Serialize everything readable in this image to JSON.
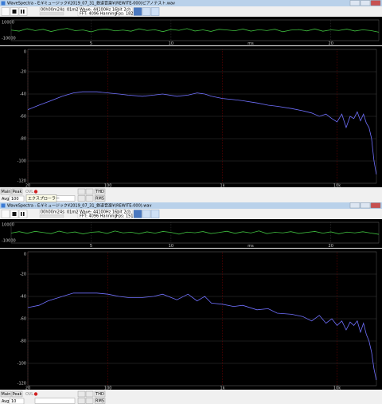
{
  "windows": [
    {
      "title": "WaveSpectra - E:¥ミュージック¥2019_07_31_鉄道音楽¥(REWITE-000)ピアノテスト.wav",
      "time": "00h00m24s",
      "elapsed": "01m24s",
      "info": [
        "Wave: 44100Hz 16bit 2ch",
        "FFT: 4096 Hanning"
      ],
      "fps": "Fps: 182",
      "buttons": [
        "Main",
        "Peak",
        "THD",
        "RMS"
      ],
      "ovl": "OVL",
      "avg_label": "Avg:",
      "avg": "100",
      "tooltip": "エクスプローラー"
    },
    {
      "title": "WaveSpectra - E:¥ミュージック¥2019_07_31_鉄道音楽¥(REWITE-000).wav",
      "time": "00h00m24s",
      "elapsed": "01m24s",
      "info": [
        "Wave: 44100Hz 16bit 2ch",
        "FFT: 4096 Hanning"
      ],
      "fps": "Fps: 151",
      "buttons": [
        "Main",
        "Peak",
        "THD",
        "RMS"
      ],
      "ovl": "OVL",
      "avg_label": "Avg:",
      "avg": "10"
    }
  ],
  "chart_data": [
    {
      "type": "line",
      "x_label": "ms",
      "color": "#3fbf3f",
      "grid_color": "#333333",
      "x": [
        0,
        0.5,
        1,
        1.5,
        2,
        2.5,
        3,
        3.5,
        4,
        4.5,
        5,
        5.5,
        6,
        6.5,
        7,
        7.5,
        8,
        8.5,
        9,
        9.5,
        10,
        10.5,
        11,
        11.5,
        12,
        12.5,
        13,
        13.5,
        14,
        14.5,
        15,
        15.5,
        16,
        16.5,
        17,
        17.5,
        18,
        18.5,
        19,
        19.5,
        20,
        20.5,
        21,
        21.5,
        22,
        22.5,
        23
      ],
      "values": [
        200,
        -800,
        1500,
        -300,
        900,
        -1200,
        600,
        1800,
        -400,
        300,
        -1500,
        700,
        1100,
        -600,
        200,
        -900,
        1400,
        -200,
        500,
        -1300,
        800,
        -100,
        1600,
        -700,
        400,
        -1100,
        900,
        300,
        -500,
        1200,
        -800,
        600,
        -300,
        1000,
        -1400,
        200,
        700,
        -600,
        1300,
        -900,
        400,
        -200,
        1100,
        -700,
        500,
        -300,
        -1800
      ],
      "xlim": [
        0,
        23
      ],
      "xticks": [
        5,
        10,
        20
      ],
      "ylim": [
        -10000,
        10000
      ],
      "yticks": [
        10000,
        -10000
      ]
    },
    {
      "type": "line",
      "log_x": true,
      "color": "#7070ff",
      "grid_color": "#6a0000",
      "x": [
        20,
        25,
        30,
        40,
        50,
        60,
        70,
        80,
        100,
        125,
        150,
        200,
        250,
        300,
        400,
        500,
        600,
        700,
        800,
        1000,
        1250,
        1500,
        2000,
        2500,
        3000,
        4000,
        5000,
        6000,
        7000,
        8000,
        9000,
        10000,
        11000,
        12000,
        13000,
        14000,
        15000,
        16000,
        17000,
        18000,
        19000,
        20000,
        21000,
        22000
      ],
      "values": [
        -54,
        -50,
        -47,
        -42,
        -39,
        -38,
        -38,
        -38,
        -39,
        -40,
        -41,
        -42,
        -41,
        -40,
        -42,
        -41,
        -39,
        -40,
        -42,
        -44,
        -45,
        -46,
        -48,
        -50,
        -51,
        -53,
        -55,
        -57,
        -60,
        -58,
        -62,
        -65,
        -58,
        -70,
        -60,
        -62,
        -56,
        -64,
        -58,
        -66,
        -70,
        -80,
        -100,
        -112
      ],
      "xlim": [
        20,
        22050
      ],
      "xticks": [
        20,
        100,
        {
          "value": 1000,
          "label": "1k"
        },
        {
          "value": 10000,
          "label": "10k"
        }
      ],
      "ylim": [
        -120,
        0
      ],
      "yticks": [
        0,
        -20,
        -40,
        -60,
        -80,
        -100,
        -120
      ]
    },
    {
      "type": "line",
      "x_label": "ms",
      "color": "#3fbf3f",
      "grid_color": "#333333",
      "x": [
        0,
        0.5,
        1,
        1.5,
        2,
        2.5,
        3,
        3.5,
        4,
        4.5,
        5,
        5.5,
        6,
        6.5,
        7,
        7.5,
        8,
        8.5,
        9,
        9.5,
        10,
        10.5,
        11,
        11.5,
        12,
        12.5,
        13,
        13.5,
        14,
        14.5,
        15,
        15.5,
        16,
        16.5,
        17,
        17.5,
        18,
        18.5,
        19,
        19.5,
        20,
        20.5,
        21,
        21.5,
        22,
        22.5,
        23
      ],
      "values": [
        -400,
        1000,
        -600,
        1300,
        200,
        -900,
        1500,
        -300,
        700,
        -1200,
        400,
        900,
        -700,
        1600,
        -200,
        500,
        -1000,
        800,
        -500,
        1200,
        300,
        -1400,
        600,
        -100,
        1100,
        -800,
        200,
        1400,
        -600,
        900,
        -300,
        1700,
        -900,
        400,
        -200,
        1000,
        -700,
        300,
        1200,
        -500,
        800,
        -1100,
        600,
        -200,
        900,
        -400,
        -1600
      ],
      "xlim": [
        0,
        23
      ],
      "xticks": [
        5,
        10,
        20
      ],
      "ylim": [
        -10000,
        10000
      ],
      "yticks": [
        10000,
        -10000
      ]
    },
    {
      "type": "line",
      "log_x": true,
      "color": "#7070ff",
      "grid_color": "#6a0000",
      "x": [
        20,
        25,
        30,
        40,
        50,
        60,
        70,
        80,
        100,
        125,
        150,
        200,
        250,
        300,
        400,
        500,
        600,
        700,
        800,
        1000,
        1250,
        1500,
        2000,
        2500,
        3000,
        4000,
        5000,
        6000,
        7000,
        8000,
        9000,
        10000,
        11000,
        12000,
        13000,
        14000,
        15000,
        16000,
        17000,
        18000,
        19000,
        20000,
        21000,
        22000
      ],
      "values": [
        -50,
        -48,
        -44,
        -40,
        -37,
        -37,
        -37,
        -37,
        -38,
        -40,
        -41,
        -41,
        -40,
        -38,
        -43,
        -38,
        -44,
        -40,
        -46,
        -47,
        -49,
        -48,
        -52,
        -51,
        -55,
        -56,
        -58,
        -62,
        -57,
        -64,
        -60,
        -66,
        -62,
        -70,
        -63,
        -66,
        -62,
        -72,
        -64,
        -74,
        -80,
        -90,
        -105,
        -115
      ],
      "xlim": [
        20,
        22050
      ],
      "xticks": [
        20,
        100,
        {
          "value": 1000,
          "label": "1k"
        },
        {
          "value": 10000,
          "label": "10k"
        }
      ],
      "ylim": [
        -120,
        0
      ],
      "yticks": [
        0,
        -20,
        -40,
        -60,
        -80,
        -100,
        -120
      ]
    }
  ]
}
